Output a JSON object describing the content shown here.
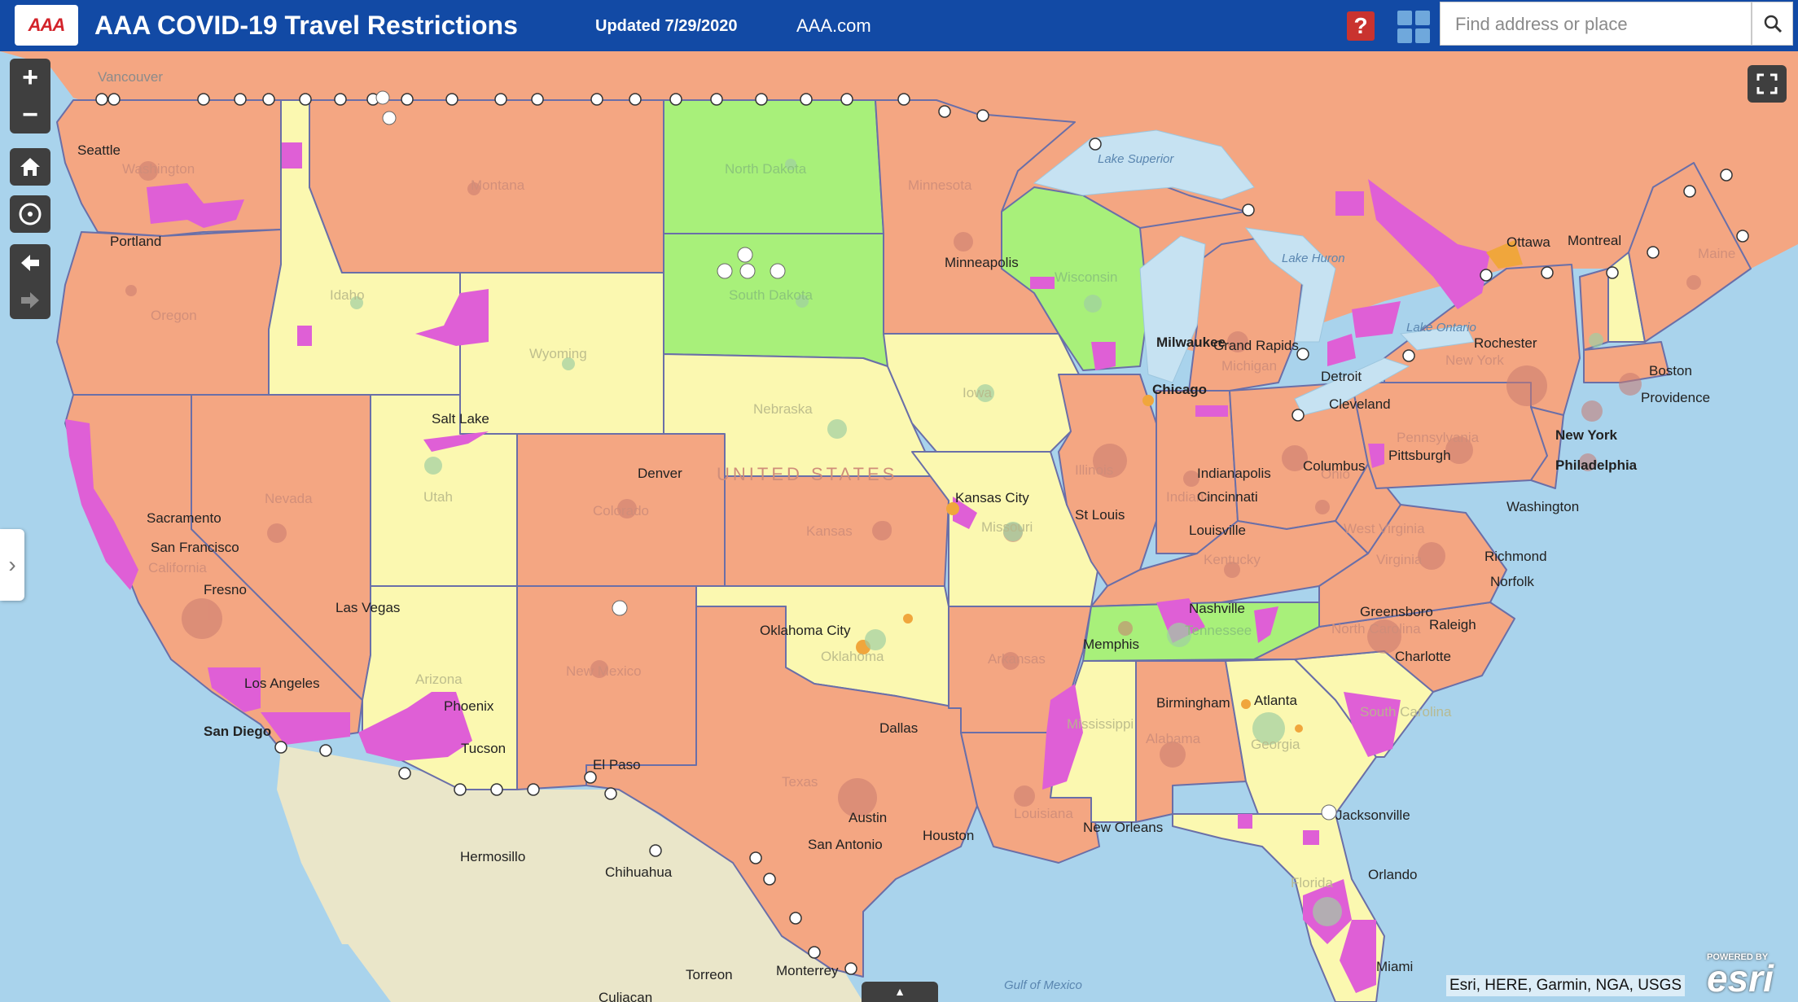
{
  "header": {
    "logo_text": "AAA",
    "title": "AAA COVID-19 Travel Restrictions",
    "updated": "Updated 7/29/2020",
    "link": "AAA.com",
    "help_label": "?",
    "search_placeholder": "Find address or place"
  },
  "colors": {
    "header_bg": "#124aa5",
    "restricted": "#f4a682",
    "open": "#fbf8b0",
    "open_green": "#a8f07a",
    "county_magenta": "#df5fd6",
    "water": "#a9d3ec",
    "lakes": "#c6e2f2",
    "mexico_land": "#eae6c9"
  },
  "icons": {
    "zoom_in": "plus-icon",
    "zoom_out": "minus-icon",
    "home": "home-icon",
    "locate": "locate-icon",
    "back": "arrow-left-icon",
    "forward": "arrow-right-icon",
    "fullscreen": "fullscreen-icon",
    "search": "search-icon",
    "apps": "grid-icon",
    "help": "help-icon",
    "expand": "chevron-right-icon",
    "handle": "caret-up-icon"
  },
  "controls": {
    "zoom_in": "+",
    "zoom_out": "−",
    "expand": "›",
    "handle": "▲"
  },
  "map_labels": {
    "cities": [
      "Vancouver",
      "Seattle",
      "Portland",
      "Sacramento",
      "San Francisco",
      "Fresno",
      "Los Angeles",
      "San Diego",
      "Las Vegas",
      "Salt Lake",
      "Denver",
      "Phoenix",
      "Tucson",
      "El Paso",
      "Dallas",
      "Austin",
      "San Antonio",
      "Houston",
      "Oklahoma City",
      "Kansas City",
      "St Louis",
      "Minneapolis",
      "Milwaukee",
      "Chicago",
      "Indianapolis",
      "Cincinnati",
      "Columbus",
      "Cleveland",
      "Pittsburgh",
      "Detroit",
      "Grand Rapids",
      "Memphis",
      "Nashville",
      "Birmingham",
      "Atlanta",
      "Charlotte",
      "Raleigh",
      "Greensboro",
      "Richmond",
      "Norfolk",
      "Washington",
      "Philadelphia",
      "New York",
      "Boston",
      "Providence",
      "Rochester",
      "Ottawa",
      "Montreal",
      "Jacksonville",
      "Orlando",
      "Miami",
      "New Orleans",
      "Hermosillo",
      "Chihuahua",
      "Culiacan",
      "Torreon",
      "Monterrey",
      "Louisville"
    ],
    "states": [
      "Washington",
      "Oregon",
      "California",
      "Nevada",
      "Idaho",
      "Montana",
      "Wyoming",
      "Utah",
      "Arizona",
      "Colorado",
      "New Mexico",
      "North Dakota",
      "South Dakota",
      "Nebraska",
      "Kansas",
      "Oklahoma",
      "Texas",
      "Minnesota",
      "Iowa",
      "Missouri",
      "Arkansas",
      "Louisiana",
      "Wisconsin",
      "Illinois",
      "Indiana",
      "Michigan",
      "Ohio",
      "Kentucky",
      "Tennessee",
      "Mississippi",
      "Alabama",
      "Georgia",
      "Florida",
      "South Carolina",
      "North Carolina",
      "Virginia",
      "West Virginia",
      "Pennsylvania",
      "New York",
      "Maine"
    ],
    "water": [
      "Lake Superior",
      "Lake Huron",
      "Lake Ontario",
      "Gulf of Mexico"
    ],
    "country": "UNITED STATES"
  },
  "attribution": "Esri, HERE, Garmin, NGA, USGS",
  "esri_logo": {
    "tagline": "POWERED BY",
    "brand": "esri"
  }
}
